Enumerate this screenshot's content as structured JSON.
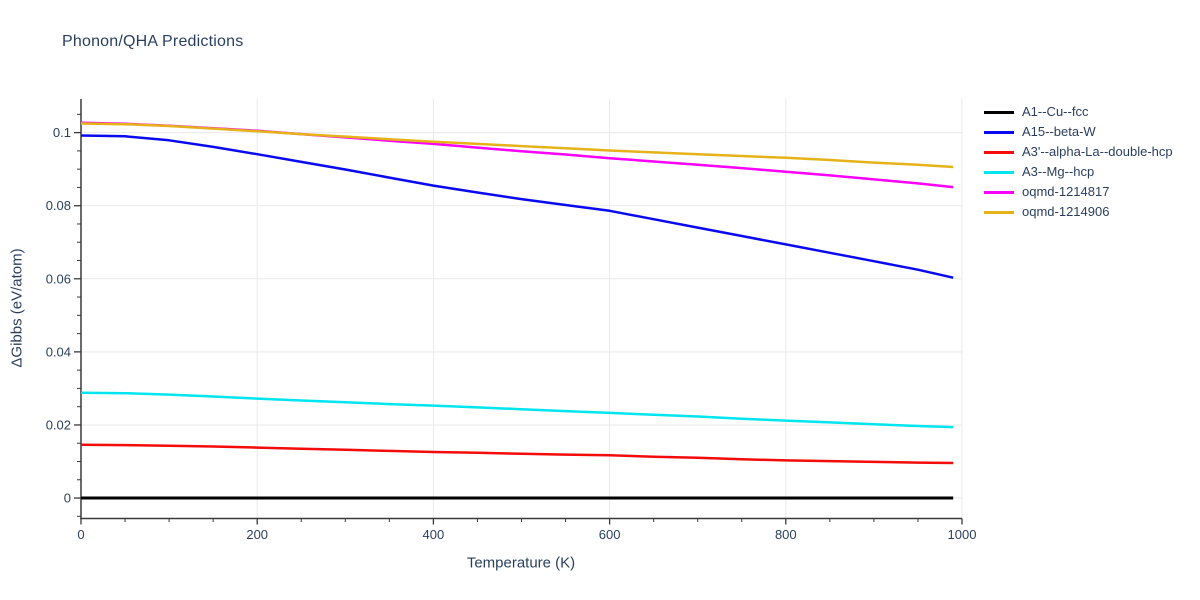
{
  "header": {
    "title": "Phonon/QHA Predictions"
  },
  "style": {
    "background": "#ffffff",
    "text_color": "#2a3f5f",
    "grid_color": "#e9e9e9",
    "axis_color": "#3a3a3a"
  },
  "chart_data": {
    "type": "line",
    "title": "Phonon/QHA Predictions",
    "xlabel": "Temperature (K)",
    "ylabel": "ΔGibbs (eV/atom)",
    "xlim": [
      0,
      1000
    ],
    "ylim": [
      -0.0056,
      0.1092
    ],
    "grid": true,
    "legend_position": "outside-right-top",
    "x_ticks_major": [
      0,
      200,
      400,
      600,
      800,
      1000
    ],
    "x_tick_labels": [
      "0",
      "200",
      "400",
      "600",
      "800",
      "1000"
    ],
    "x_minor_step": 50,
    "y_ticks_major": [
      0,
      0.02,
      0.04,
      0.06,
      0.08,
      0.1
    ],
    "y_tick_labels": [
      "0",
      "0.02",
      "0.04",
      "0.06",
      "0.08",
      "0.1"
    ],
    "y_minor_step": 0.005,
    "x": [
      0,
      50,
      100,
      150,
      200,
      250,
      300,
      350,
      400,
      450,
      500,
      550,
      600,
      650,
      700,
      750,
      800,
      850,
      900,
      950,
      990
    ],
    "series": [
      {
        "name": "A1--Cu--fcc",
        "color": "#000000",
        "width": 3,
        "values": [
          0,
          0,
          0,
          0,
          0,
          0,
          0,
          0,
          0,
          0,
          0,
          0,
          0,
          0,
          0,
          0,
          0,
          0,
          0,
          0,
          0
        ]
      },
      {
        "name": "A15--beta-W",
        "color": "#0a0af0",
        "width": 2.5,
        "values": [
          0.0992,
          0.099,
          0.0979,
          0.0961,
          0.0941,
          0.092,
          0.0899,
          0.0877,
          0.0855,
          0.0836,
          0.0818,
          0.0802,
          0.0786,
          0.0763,
          0.074,
          0.0717,
          0.0694,
          0.0671,
          0.0648,
          0.0625,
          0.0603
        ]
      },
      {
        "name": "A3'--alpha-La--double-hcp",
        "color": "#f40b0b",
        "width": 2.5,
        "values": [
          0.0146,
          0.0145,
          0.0143,
          0.0141,
          0.0138,
          0.0135,
          0.0132,
          0.0129,
          0.0126,
          0.0124,
          0.0121,
          0.0119,
          0.0117,
          0.0113,
          0.011,
          0.0106,
          0.0103,
          0.0101,
          0.0099,
          0.0097,
          0.0096
        ]
      },
      {
        "name": "A3--Mg--hcp",
        "color": "#00e5ee",
        "width": 2.5,
        "values": [
          0.0288,
          0.0287,
          0.0283,
          0.0278,
          0.0272,
          0.0267,
          0.0262,
          0.0257,
          0.0253,
          0.0248,
          0.0243,
          0.0238,
          0.0233,
          0.0228,
          0.0223,
          0.0217,
          0.0212,
          0.0207,
          0.0202,
          0.0197,
          0.0194
        ]
      },
      {
        "name": "oqmd-1214817",
        "color": "#fb00fb",
        "width": 2.5,
        "values": [
          0.1027,
          0.1024,
          0.1019,
          0.1012,
          0.1005,
          0.0996,
          0.0987,
          0.0978,
          0.0969,
          0.0959,
          0.0949,
          0.094,
          0.093,
          0.0921,
          0.0912,
          0.0903,
          0.0893,
          0.0883,
          0.0872,
          0.0861,
          0.0851
        ]
      },
      {
        "name": "oqmd-1214906",
        "color": "#e6b219",
        "width": 2.5,
        "values": [
          0.1025,
          0.1023,
          0.1018,
          0.1011,
          0.1004,
          0.0996,
          0.0989,
          0.0982,
          0.0975,
          0.0969,
          0.0963,
          0.0957,
          0.0951,
          0.0946,
          0.0941,
          0.0936,
          0.0931,
          0.0925,
          0.0918,
          0.0912,
          0.0906
        ]
      }
    ]
  }
}
